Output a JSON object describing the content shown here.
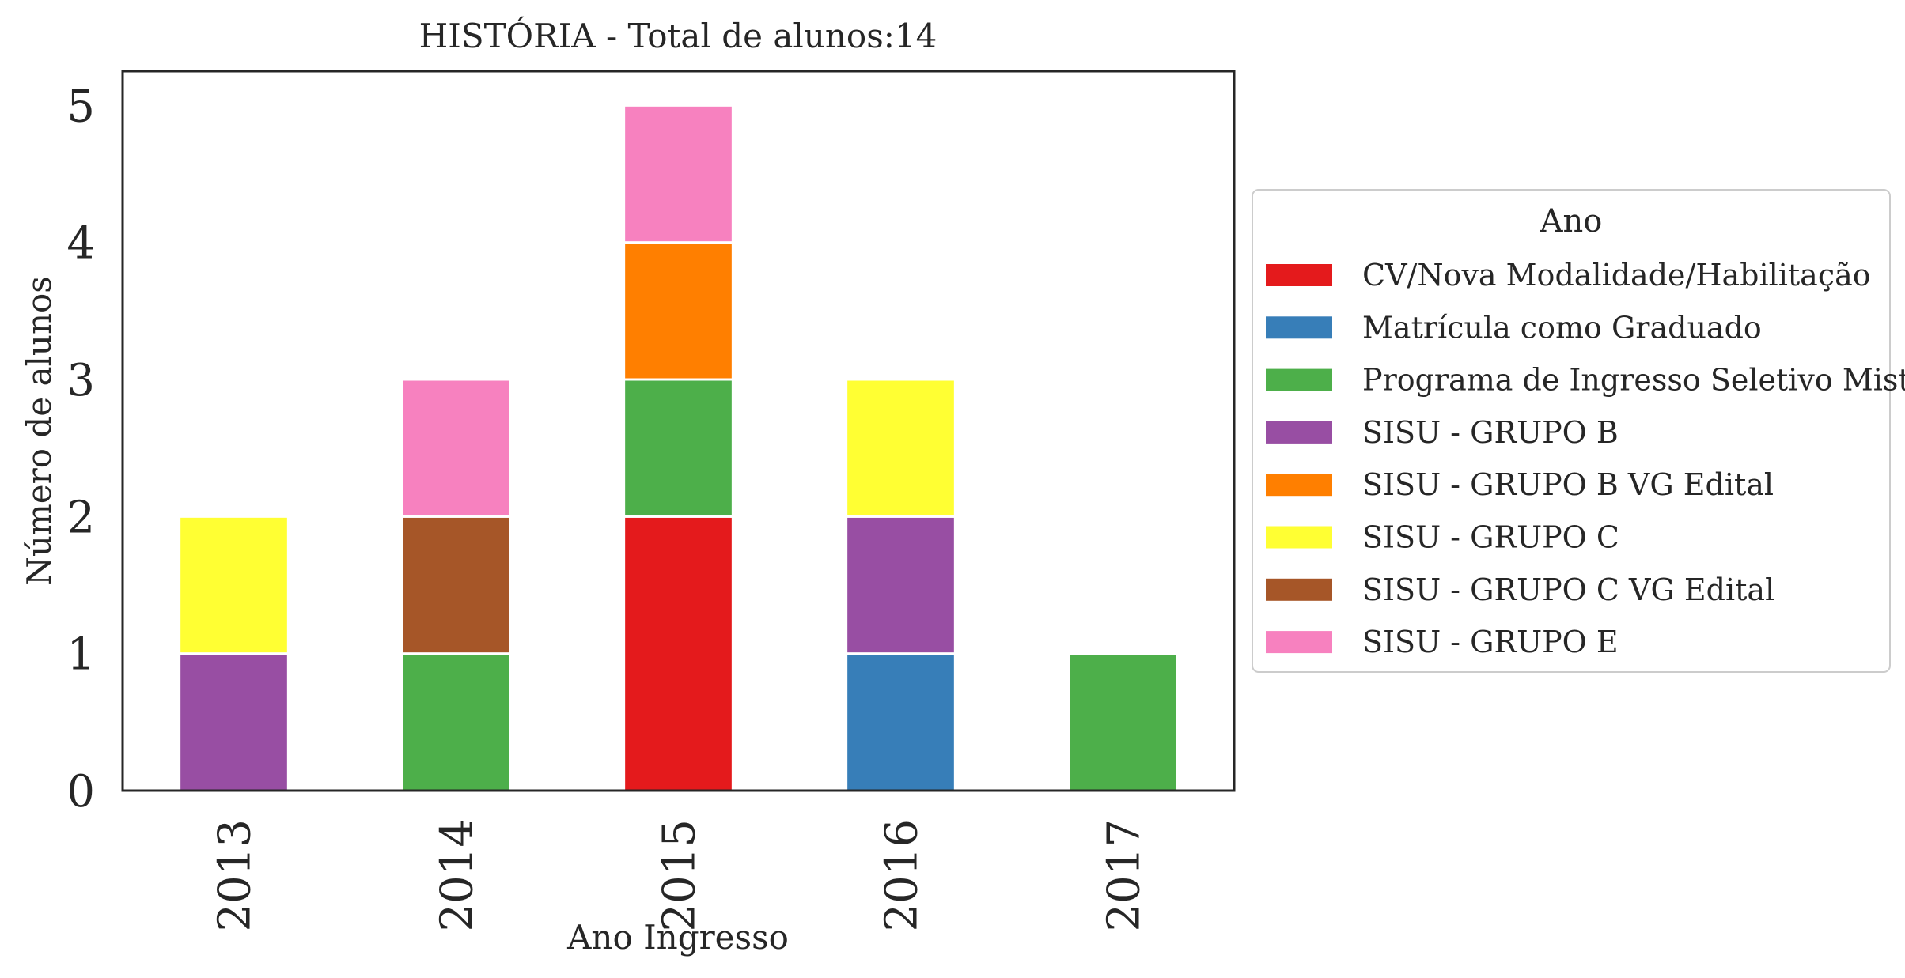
{
  "chart_data": {
    "type": "bar",
    "stacked": true,
    "title": "HISTÓRIA - Total de alunos:14",
    "xlabel": "Ano Ingresso",
    "ylabel": "Número de alunos",
    "categories": [
      "2013",
      "2014",
      "2015",
      "2016",
      "2017"
    ],
    "ylim": [
      0,
      5.25
    ],
    "yticks": [
      "0",
      "1",
      "2",
      "3",
      "4",
      "5"
    ],
    "grid": false,
    "legend": {
      "title": "Ano",
      "placement": "right-outside"
    },
    "series": [
      {
        "name": "CV/Nova Modalidade/Habilitação",
        "color": "#e41a1c",
        "values": [
          0,
          0,
          2,
          0,
          0
        ]
      },
      {
        "name": "Matrícula como Graduado",
        "color": "#377eb8",
        "values": [
          0,
          0,
          0,
          1,
          0
        ]
      },
      {
        "name": "Programa de Ingresso Seletivo Misto",
        "color": "#4daf4a",
        "values": [
          0,
          1,
          1,
          0,
          1
        ]
      },
      {
        "name": "SISU - GRUPO B",
        "color": "#984ea3",
        "values": [
          1,
          0,
          0,
          1,
          0
        ]
      },
      {
        "name": "SISU - GRUPO B VG Edital",
        "color": "#ff7f00",
        "values": [
          0,
          0,
          1,
          0,
          0
        ]
      },
      {
        "name": "SISU - GRUPO C",
        "color": "#ffff33",
        "values": [
          1,
          0,
          0,
          1,
          0
        ]
      },
      {
        "name": "SISU - GRUPO C VG Edital",
        "color": "#a65628",
        "values": [
          0,
          1,
          0,
          0,
          0
        ]
      },
      {
        "name": "SISU - GRUPO E",
        "color": "#f781bf",
        "values": [
          0,
          1,
          1,
          0,
          0
        ]
      }
    ]
  }
}
